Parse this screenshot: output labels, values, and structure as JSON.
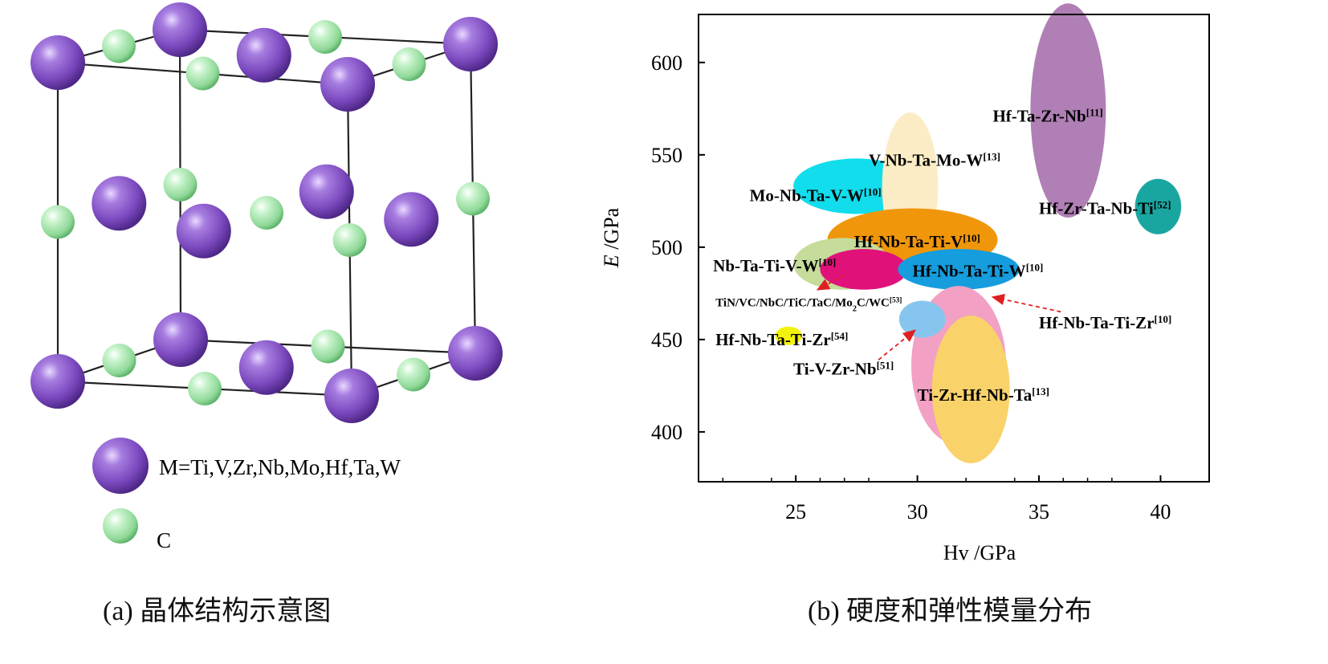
{
  "panel_a": {
    "legend_metal": "M=Ti,V,Zr,Nb,Mo,Hf,Ta,W",
    "legend_carbon": "C",
    "caption": "(a)  晶体结构示意图",
    "colors": {
      "metal_atom": "#8b5cc8",
      "carbon_atom": "#a9e8b0",
      "bond": "#222222"
    }
  },
  "panel_b": {
    "caption": "(b) 硬度和弹性模量分布",
    "chart_data": {
      "type": "scatter",
      "xlabel": "Hv /GPa",
      "ylabel_italic": "E",
      "ylabel_rest": " /GPa",
      "xlim": [
        21,
        42
      ],
      "ylim": [
        373,
        626
      ],
      "xticks": [
        25,
        30,
        35,
        40
      ],
      "yticks": [
        400,
        450,
        500,
        550,
        600
      ],
      "grid": false,
      "series": [
        {
          "name": "Hf-Ta-Zr-Nb",
          "ref": "[11]",
          "cx": 36.2,
          "cy": 574,
          "rx": 1.55,
          "ry": 58,
          "color": "#b07fb5"
        },
        {
          "name": "Hf-Zr-Ta-Nb-Ti",
          "ref": "[52]",
          "cx": 39.9,
          "cy": 522,
          "rx": 0.95,
          "ry": 15,
          "color": "#1aa6a0"
        },
        {
          "name": "Mo-Nb-Ta-V-W",
          "ref": "[10]",
          "cx": 27.5,
          "cy": 533,
          "rx": 2.6,
          "ry": 15,
          "color": "#12ddec"
        },
        {
          "name": "V-Nb-Ta-Mo-W",
          "ref": "[13]",
          "cx": 29.7,
          "cy": 533,
          "rx": 1.15,
          "ry": 40,
          "color": "#fbecc5"
        },
        {
          "name": "Hf-Nb-Ta-Ti-V",
          "ref": "[10]",
          "cx": 29.8,
          "cy": 504,
          "rx": 3.5,
          "ry": 17,
          "color": "#f0960b"
        },
        {
          "name": "Nb-Ta-Ti-V-W",
          "ref": "[10]",
          "cx": 26.9,
          "cy": 491,
          "rx": 2.0,
          "ry": 14,
          "color": "#c5dc9a"
        },
        {
          "name": "TiN/VC/NbC/TiC/TaC/Mo2C/WC",
          "ref": "[53]",
          "cx": 27.8,
          "cy": 488,
          "rx": 1.8,
          "ry": 11,
          "color": "#e0127a"
        },
        {
          "name": "Hf-Nb-Ta-Ti-W",
          "ref": "[10]",
          "cx": 31.7,
          "cy": 488,
          "rx": 2.5,
          "ry": 11,
          "color": "#159dde"
        },
        {
          "name": "Hf-Nb-Ta-Ti-Zr",
          "ref": "[10]",
          "cx": 31.7,
          "cy": 436,
          "rx": 1.95,
          "ry": 43,
          "color": "#f2a0c4"
        },
        {
          "name": "Ti-Zr-Hf-Nb-Ta",
          "ref": "[13]",
          "cx": 32.2,
          "cy": 423,
          "rx": 1.6,
          "ry": 40,
          "color": "#f9d26a"
        },
        {
          "name": "Ti-V-Zr-Nb",
          "ref": "[51]",
          "cx": 30.2,
          "cy": 461,
          "rx": 0.95,
          "ry": 10,
          "color": "#86c6ee"
        },
        {
          "name": "Hf-Nb-Ta-Ti-Zr",
          "ref": "[54]",
          "cx": 24.7,
          "cy": 452,
          "rx": 0.55,
          "ry": 5,
          "color": "#f3f20c"
        }
      ],
      "labels": [
        {
          "text": "Hf-Ta-Zr-Nb",
          "ref": "[11]",
          "x": 33.1,
          "y": 568
        },
        {
          "text": "Hf-Zr-Ta-Nb-Ti",
          "ref": "[52]",
          "x": 35.0,
          "y": 518
        },
        {
          "text": "V-Nb-Ta-Mo-W",
          "ref": "[13]",
          "x": 28.0,
          "y": 544
        },
        {
          "text": "Mo-Nb-Ta-V-W",
          "ref": "[10]",
          "x": 23.1,
          "y": 525
        },
        {
          "text": "Hf-Nb-Ta-Ti-V",
          "ref": "[10]",
          "x": 27.4,
          "y": 500
        },
        {
          "text": "Nb-Ta-Ti-V-W",
          "ref": "[10]",
          "x": 21.6,
          "y": 487
        },
        {
          "text": "Hf-Nb-Ta-Ti-W",
          "ref": "[10]",
          "x": 29.8,
          "y": 484
        },
        {
          "text": "TiN/VC/NbC/TiC/TaC/Mo",
          "sub": "2",
          "tail": "C/WC",
          "ref": "[53]",
          "x": 21.7,
          "y": 468,
          "small": true
        },
        {
          "text": "Hf-Nb-Ta-Ti-Zr",
          "ref": "[10]",
          "x": 35.0,
          "y": 456
        },
        {
          "text": "Hf-Nb-Ta-Ti-Zr",
          "ref": "[54]",
          "x": 21.7,
          "y": 447
        },
        {
          "text": "Ti-V-Zr-Nb",
          "ref": "[51]",
          "x": 24.9,
          "y": 431
        },
        {
          "text": "Ti-Zr-Hf-Nb-Ta",
          "ref": "[13]",
          "x": 30.0,
          "y": 417
        }
      ],
      "arrows": [
        {
          "from": [
            27.0,
            485
          ],
          "to": [
            25.9,
            477
          ]
        },
        {
          "from": [
            35.9,
            465
          ],
          "to": [
            33.1,
            473
          ]
        },
        {
          "from": [
            28.4,
            439
          ],
          "to": [
            29.9,
            455
          ]
        }
      ]
    }
  }
}
